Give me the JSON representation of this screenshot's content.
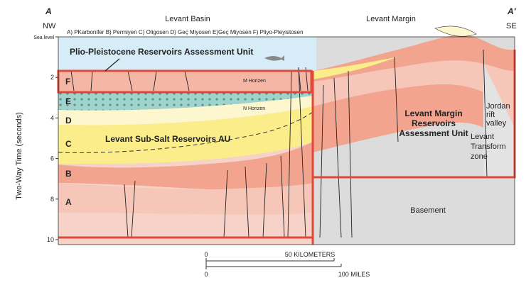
{
  "header": {
    "left_end": "A",
    "right_end": "A′",
    "left_direction": "NW",
    "right_direction": "SE",
    "basin": "Levant Basin",
    "margin": "Levant Margin",
    "legend": "A) PKarbonifer B) Permiyen C) Oligosen D) Geç Miyosen E)Geç Miyosen F) Pliyo-Pleyistosen"
  },
  "axis": {
    "title": "Two-Way Time (seconds)",
    "ticks": [
      "Sea level",
      "2",
      "4",
      "6",
      "8",
      "10"
    ]
  },
  "units": {
    "plio": "Plio-Pleistocene Reservoirs Assessment Unit",
    "subsalt": "Levant Sub-Salt Reservoirs AU",
    "margin": [
      "Levant Margin",
      "Reservoirs",
      "Assessment Unit"
    ],
    "basement": "Basement",
    "rift": [
      "Jordan",
      "rift",
      "valley"
    ],
    "transform": [
      "Levant",
      "Transform",
      "zone"
    ]
  },
  "layers": [
    "F",
    "E",
    "D",
    "C",
    "B",
    "A"
  ],
  "horizons": {
    "m": "M Horizen",
    "n": "N Horizen"
  },
  "scale": {
    "km_zero": "0",
    "km": "50 KILOMETERS",
    "mi_zero": "0",
    "mi": "100 MILES"
  }
}
